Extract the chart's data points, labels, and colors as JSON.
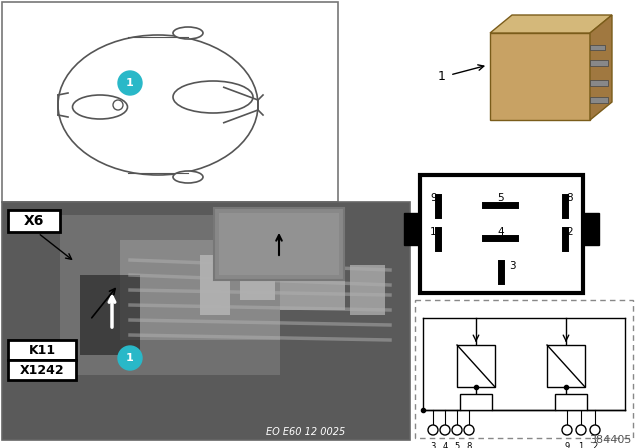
{
  "bg_color": "#ffffff",
  "cyan_color": "#29b8c8",
  "tan_color": "#c8a264",
  "tan_dark": "#a07840",
  "tan_light": "#d4b87a",
  "gray_photo": "#8a8a8a",
  "part_number": "384405",
  "eo_text": "EO E60 12 0025",
  "label_x6": "X6",
  "label_k11": "K11",
  "label_x1242": "X1242"
}
